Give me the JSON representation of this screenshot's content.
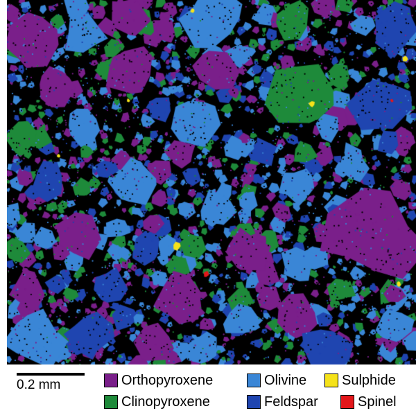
{
  "scale_bar": {
    "label": "0.2 mm"
  },
  "colors": {
    "background": "#000000",
    "opx": "#7a1f8a",
    "olivine": "#3a86d6",
    "cpx": "#1e8a3a",
    "feldspar": "#1f45b0",
    "sulphide": "#f5e21a",
    "spinel": "#e3161a"
  },
  "legend": [
    {
      "label": "Orthopyroxene",
      "color": "#7a1f8a"
    },
    {
      "label": "Olivine",
      "color": "#3a86d6"
    },
    {
      "label": "Sulphide",
      "color": "#f5e21a"
    },
    {
      "label": "Clinopyroxene",
      "color": "#1e8a3a"
    },
    {
      "label": "Feldspar",
      "color": "#1f45b0"
    },
    {
      "label": "Spinel",
      "color": "#e3161a"
    }
  ]
}
